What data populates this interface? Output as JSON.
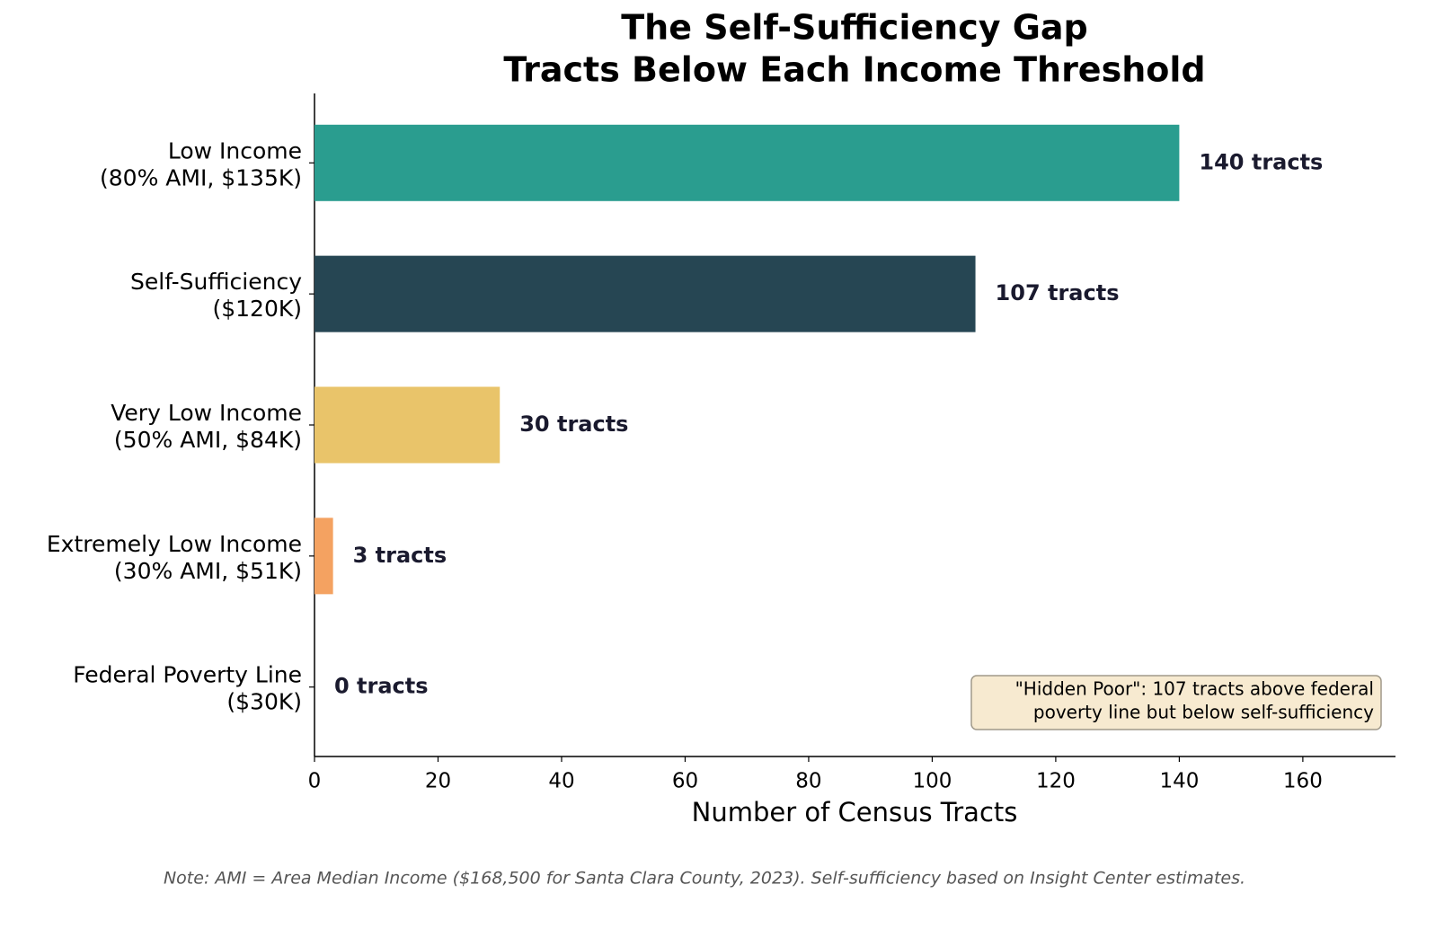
{
  "chart_data": {
    "type": "bar",
    "title": [
      "The Self-Sufficiency Gap",
      "Tracts Below Each Income Threshold"
    ],
    "categories": [
      [
        "Low Income",
        "(80% AMI, $135K)"
      ],
      [
        "Self-Sufficiency",
        "($120K)"
      ],
      [
        "Very Low Income",
        "(50% AMI, $84K)"
      ],
      [
        "Extremely Low Income",
        "(30% AMI, $51K)"
      ],
      [
        "Federal Poverty Line",
        "($30K)"
      ]
    ],
    "values": [
      140,
      107,
      30,
      3,
      0
    ],
    "value_labels": [
      "140 tracts",
      "107 tracts",
      "30 tracts",
      "3 tracts",
      "0 tracts"
    ],
    "colors": [
      "#2a9d8f",
      "#264653",
      "#e9c46a",
      "#f4a261",
      "#e76f51"
    ],
    "x_label": "Number of Census Tracts",
    "xlim": [
      0,
      175
    ],
    "xticks": [
      0,
      20,
      40,
      60,
      80,
      100,
      120,
      140,
      160
    ],
    "annotation": [
      "\"Hidden Poor\": 107 tracts above federal",
      "poverty line but below self-sufficiency"
    ],
    "note": "Note: AMI = Area Median Income ($168,500 for Santa Clara County, 2023). Self-sufficiency based on Insight Center estimates."
  }
}
